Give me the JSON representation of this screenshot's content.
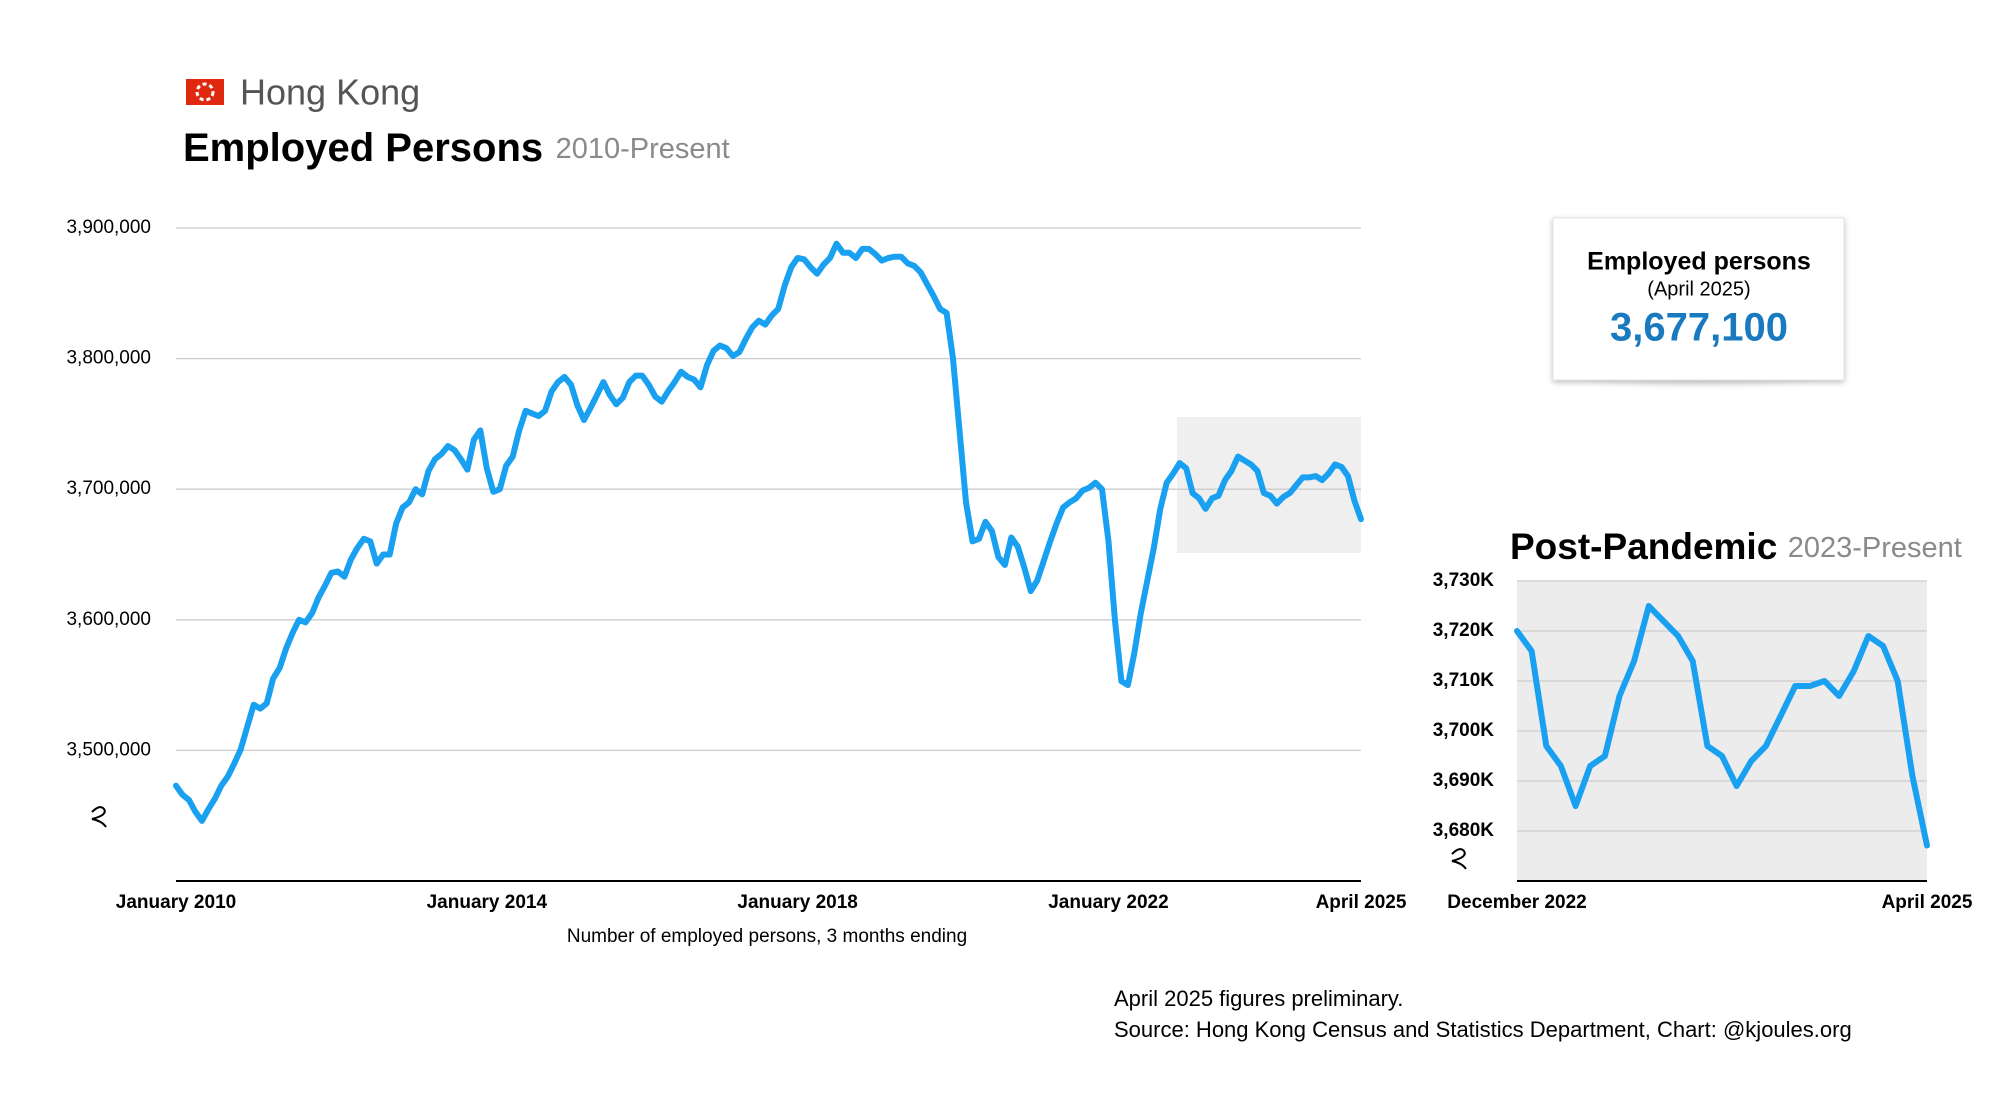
{
  "header": {
    "region": "Hong Kong"
  },
  "callout": {
    "title": "Employed persons",
    "subtitle": "(April 2025)",
    "value": "3,677,100"
  },
  "notes": [
    "April 2025 figures preliminary.",
    "Source: Hong Kong Census and Statistics Department, Chart: @kjoules.org"
  ],
  "chart_data": [
    {
      "type": "line",
      "title": "Employed Persons",
      "subtitle": "2010-Present",
      "x_label": "Number of employed persons, 3 months ending",
      "color": "#1aa0f0",
      "categories": [
        "January 2010",
        null,
        null,
        null,
        null,
        null,
        null,
        null,
        null,
        null,
        null,
        null,
        null,
        null,
        null,
        null,
        null,
        null,
        null,
        null,
        null,
        null,
        null,
        null,
        null,
        null,
        null,
        null,
        null,
        null,
        null,
        null,
        null,
        null,
        null,
        null,
        null,
        null,
        null,
        null,
        null,
        null,
        null,
        null,
        null,
        null,
        null,
        null,
        "January 2014",
        null,
        null,
        null,
        null,
        null,
        null,
        null,
        null,
        null,
        null,
        null,
        null,
        null,
        null,
        null,
        null,
        null,
        null,
        null,
        null,
        null,
        null,
        null,
        null,
        null,
        null,
        null,
        null,
        null,
        null,
        null,
        null,
        null,
        null,
        null,
        null,
        null,
        null,
        null,
        null,
        null,
        null,
        null,
        null,
        null,
        null,
        null,
        "January 2018",
        null,
        null,
        null,
        null,
        null,
        null,
        null,
        null,
        null,
        null,
        null,
        null,
        null,
        null,
        null,
        null,
        null,
        null,
        null,
        null,
        null,
        null,
        null,
        null,
        null,
        null,
        null,
        null,
        null,
        null,
        null,
        null,
        null,
        null,
        null,
        null,
        null,
        null,
        null,
        null,
        null,
        null,
        null,
        null,
        null,
        null,
        null,
        "January 2022",
        null,
        null,
        null,
        null,
        null,
        null,
        null,
        null,
        null,
        null,
        null,
        null,
        null,
        null,
        null,
        null,
        null,
        null,
        null,
        null,
        null,
        null,
        null,
        null,
        null,
        null,
        null,
        null,
        null,
        null,
        null,
        null,
        null,
        null,
        null,
        null,
        null,
        null,
        "April 2025"
      ],
      "values": [
        3473000,
        3466000,
        3462000,
        3453000,
        3446000,
        3455000,
        3463000,
        3473000,
        3480000,
        3490000,
        3501000,
        3518000,
        3535000,
        3532000,
        3536000,
        3555000,
        3563000,
        3578000,
        3590000,
        3600000,
        3598000,
        3605000,
        3617000,
        3626000,
        3636000,
        3637000,
        3633000,
        3646000,
        3655000,
        3662000,
        3660000,
        3643000,
        3650000,
        3650000,
        3674000,
        3686000,
        3690000,
        3700000,
        3696000,
        3714000,
        3723000,
        3727000,
        3733000,
        3730000,
        3723000,
        3715000,
        3738000,
        3745000,
        3716000,
        3698000,
        3700000,
        3718000,
        3725000,
        3745000,
        3760000,
        3758000,
        3756000,
        3760000,
        3775000,
        3782000,
        3786000,
        3780000,
        3764000,
        3753000,
        3762000,
        3772000,
        3782000,
        3772000,
        3765000,
        3770000,
        3782000,
        3787000,
        3787000,
        3780000,
        3771000,
        3767000,
        3775000,
        3782000,
        3790000,
        3786000,
        3784000,
        3778000,
        3795000,
        3806000,
        3810000,
        3808000,
        3802000,
        3805000,
        3815000,
        3824000,
        3829000,
        3826000,
        3833000,
        3838000,
        3856000,
        3870000,
        3877000,
        3876000,
        3870000,
        3865000,
        3872000,
        3877000,
        3888000,
        3881000,
        3881000,
        3877000,
        3884000,
        3884000,
        3880000,
        3875000,
        3877000,
        3878000,
        3878000,
        3873000,
        3871000,
        3866000,
        3857000,
        3848000,
        3838000,
        3835000,
        3800000,
        3745000,
        3690000,
        3660000,
        3662000,
        3675000,
        3668000,
        3648000,
        3642000,
        3663000,
        3656000,
        3640000,
        3622000,
        3630000,
        3645000,
        3660000,
        3674000,
        3686000,
        3690000,
        3693000,
        3699000,
        3701000,
        3705000,
        3700000,
        3660000,
        3600000,
        3553000,
        3550000,
        3575000,
        3605000,
        3630000,
        3655000,
        3685000,
        3705000,
        3712000,
        3720000,
        3716000,
        3697000,
        3693000,
        3685000,
        3693000,
        3695000,
        3707000,
        3714000,
        3725000,
        3722000,
        3719000,
        3714000,
        3697000,
        3695000,
        3689000,
        3694000,
        3697000,
        3703000,
        3709000,
        3709000,
        3710000,
        3707000,
        3712000,
        3719000,
        3717000,
        3710000,
        3691000,
        3677100
      ],
      "ylim": [
        3400000,
        3900000
      ],
      "yticks": [
        {
          "value": 3500000,
          "label": "3,500,000"
        },
        {
          "value": 3600000,
          "label": "3,600,000"
        },
        {
          "value": 3700000,
          "label": "3,700,000"
        },
        {
          "value": 3800000,
          "label": "3,800,000"
        },
        {
          "value": 3900000,
          "label": "3,900,000"
        }
      ],
      "grid": true
    },
    {
      "type": "line",
      "title": "Post-Pandemic",
      "subtitle": "2023-Present",
      "color": "#1aa0f0",
      "categories": [
        "December 2022",
        null,
        null,
        null,
        null,
        null,
        null,
        null,
        null,
        null,
        null,
        null,
        null,
        null,
        null,
        null,
        null,
        null,
        null,
        null,
        null,
        null,
        null,
        null,
        null,
        null,
        null,
        null,
        "April 2025"
      ],
      "values": [
        3720000,
        3716000,
        3697000,
        3693000,
        3685000,
        3693000,
        3695000,
        3707000,
        3714000,
        3725000,
        3722000,
        3719000,
        3714000,
        3697000,
        3695000,
        3689000,
        3694000,
        3697000,
        3703000,
        3709000,
        3709000,
        3710000,
        3707000,
        3712000,
        3719000,
        3717000,
        3710000,
        3691000,
        3677100
      ],
      "ylim": [
        3670000,
        3730000
      ],
      "yticks": [
        {
          "value": 3680000,
          "label": "3,680K"
        },
        {
          "value": 3690000,
          "label": "3,690K"
        },
        {
          "value": 3700000,
          "label": "3,700K"
        },
        {
          "value": 3710000,
          "label": "3,710K"
        },
        {
          "value": 3720000,
          "label": "3,720K"
        },
        {
          "value": 3730000,
          "label": "3,730K"
        }
      ],
      "grid": true
    }
  ]
}
